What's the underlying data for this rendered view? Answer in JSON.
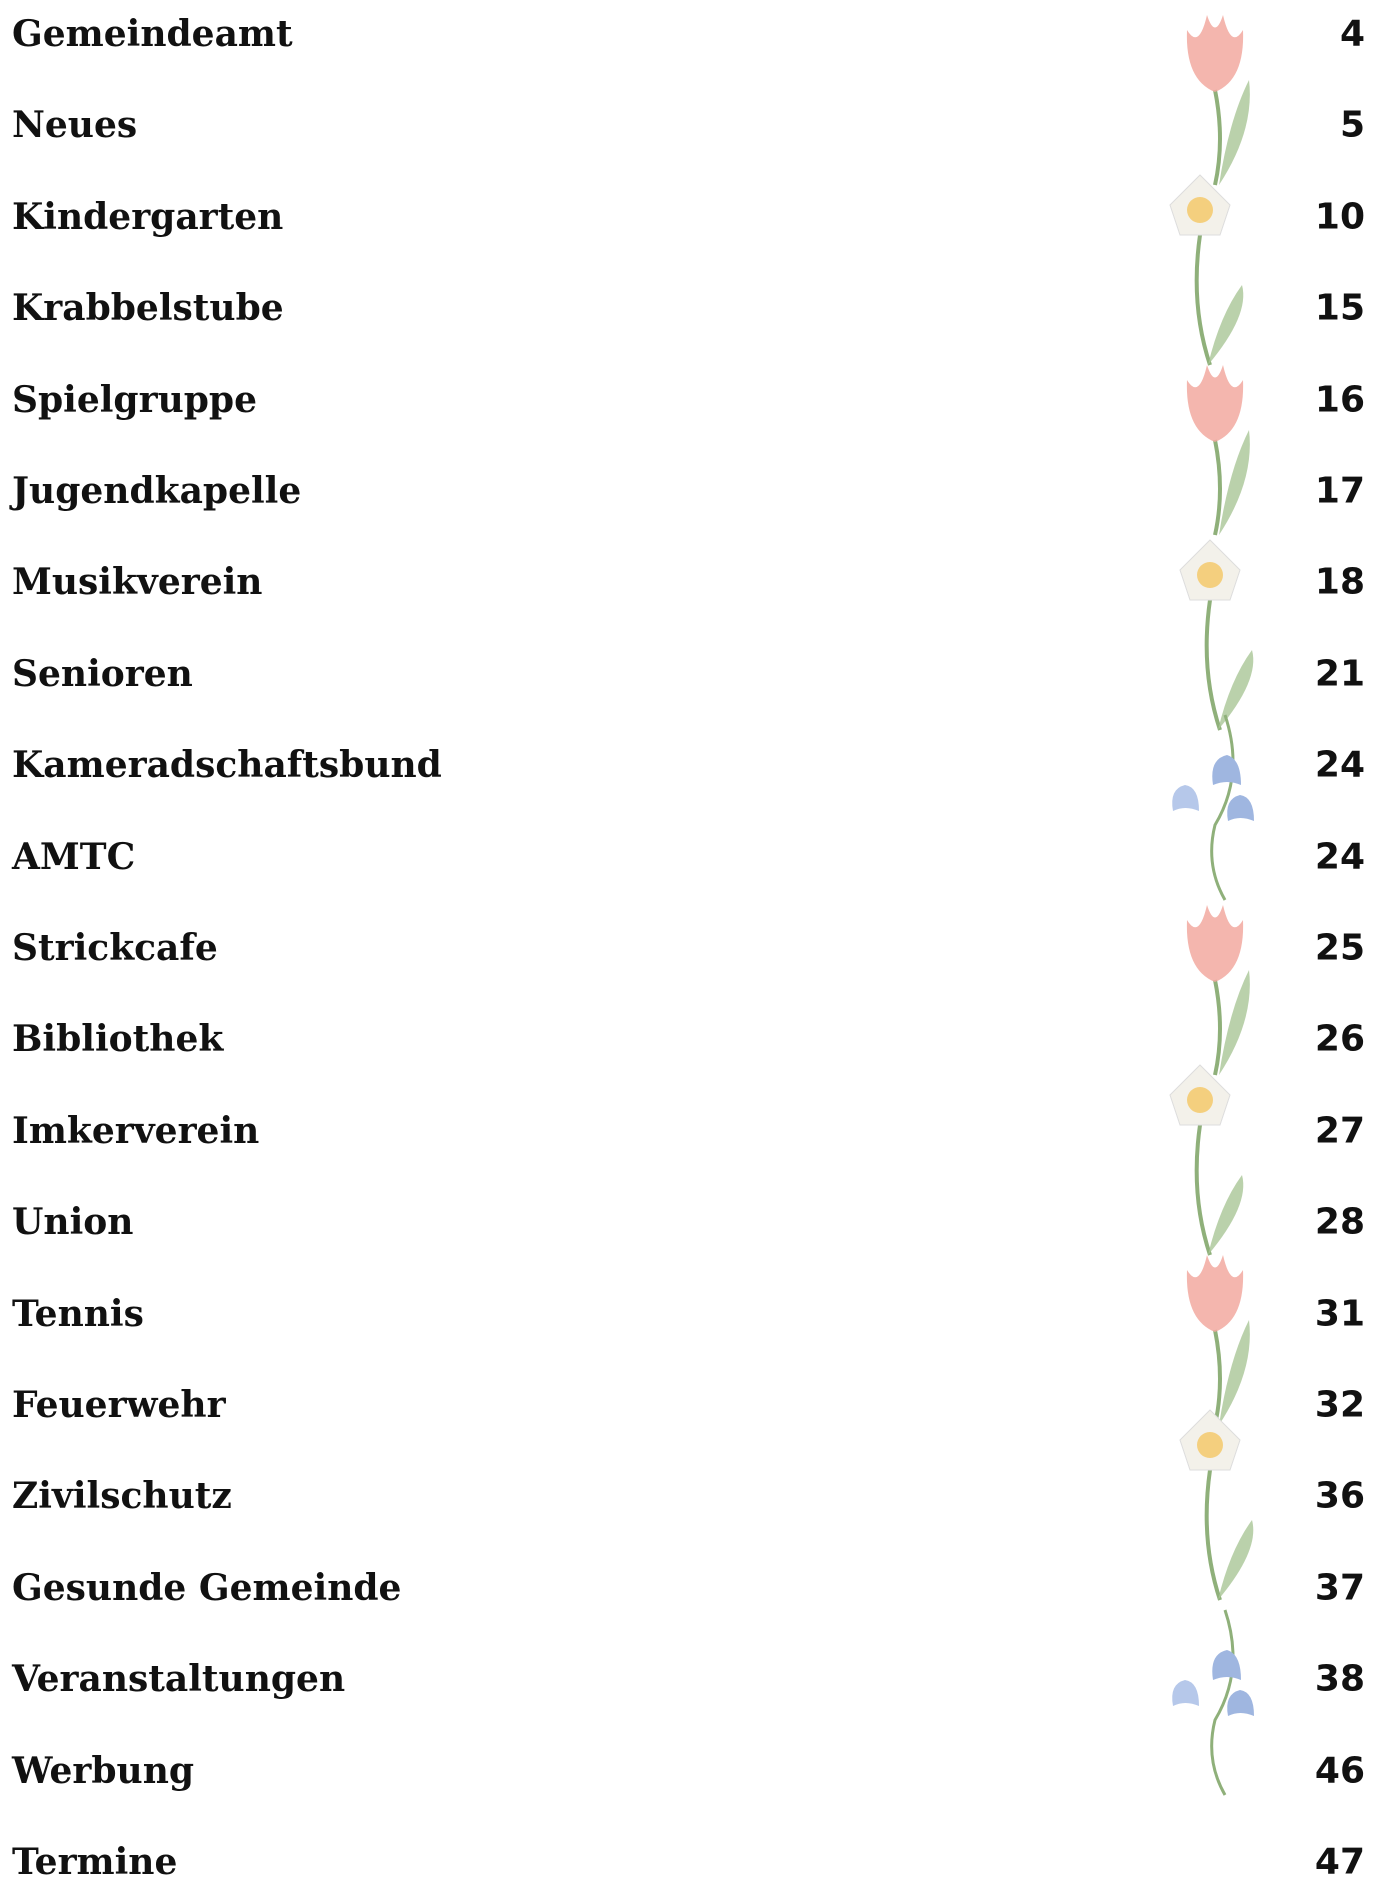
{
  "toc": {
    "entries": [
      {
        "title": "Gemeindeamt",
        "page": 4
      },
      {
        "title": "Neues",
        "page": 5
      },
      {
        "title": "Kindergarten",
        "page": 10
      },
      {
        "title": "Krabbelstube",
        "page": 15
      },
      {
        "title": "Spielgruppe",
        "page": 16
      },
      {
        "title": "Jugendkapelle",
        "page": 17
      },
      {
        "title": "Musikverein",
        "page": 18
      },
      {
        "title": "Senioren",
        "page": 21
      },
      {
        "title": "Kameradschaftsbund",
        "page": 24
      },
      {
        "title": "AMTC",
        "page": 24
      },
      {
        "title": "Strickcafe",
        "page": 25
      },
      {
        "title": "Bibliothek",
        "page": 26
      },
      {
        "title": "Imkerverein",
        "page": 27
      },
      {
        "title": "Union",
        "page": 28
      },
      {
        "title": "Tennis",
        "page": 31
      },
      {
        "title": "Feuerwehr",
        "page": 32
      },
      {
        "title": "Zivilschutz",
        "page": 36
      },
      {
        "title": "Gesunde Gemeinde",
        "page": 37
      },
      {
        "title": "Veranstaltungen",
        "page": 38
      },
      {
        "title": "Werbung",
        "page": 46
      },
      {
        "title": "Termine",
        "page": 47
      }
    ]
  }
}
